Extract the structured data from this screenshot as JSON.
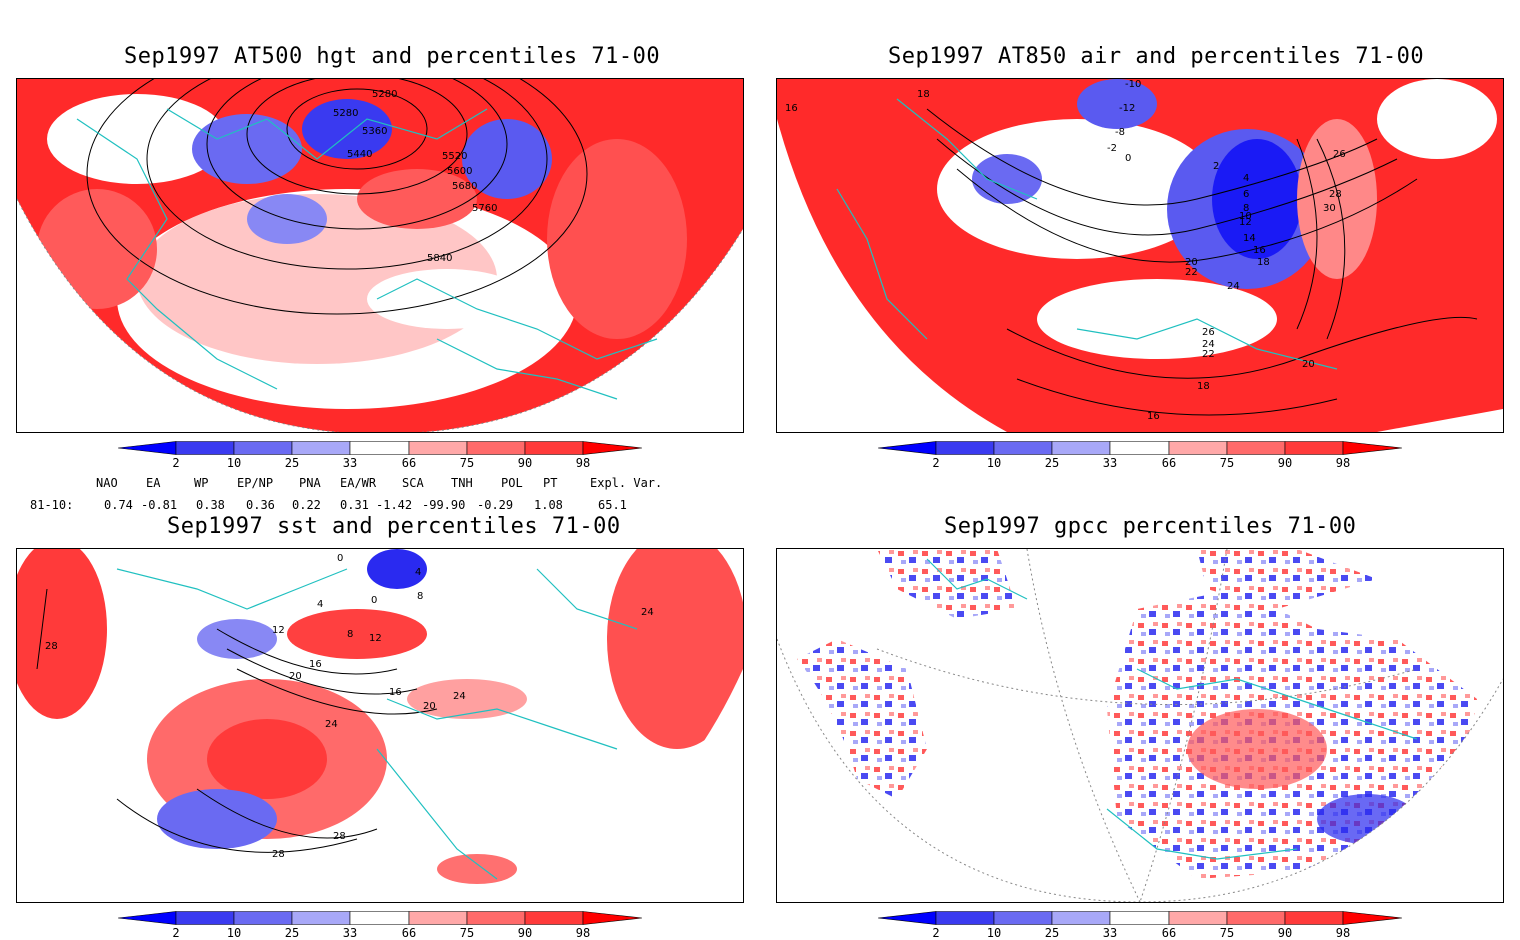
{
  "panels": [
    {
      "id": "hgt",
      "title": "Sep1997 AT500 hgt and percentiles 71-00",
      "contour_labels": [
        "5280",
        "5280",
        "5360",
        "5440",
        "5520",
        "5600",
        "5680",
        "5760",
        "5840"
      ]
    },
    {
      "id": "air",
      "title": "Sep1997 AT850 air and percentiles 71-00",
      "contour_labels": [
        "-10",
        "-12",
        "-8",
        "-2",
        "0",
        "2",
        "4",
        "6",
        "8",
        "10",
        "12",
        "14",
        "16",
        "18",
        "20",
        "22",
        "24",
        "26",
        "28",
        "30",
        "18",
        "16",
        "16",
        "18",
        "20",
        "22",
        "24",
        "26"
      ]
    },
    {
      "id": "sst",
      "title": "Sep1997 sst and percentiles 71-00",
      "contour_labels": [
        "0",
        "4",
        "8",
        "12",
        "16",
        "20",
        "24",
        "28",
        "28",
        "28",
        "24",
        "24",
        "20",
        "16",
        "12",
        "8",
        "4",
        "0"
      ]
    },
    {
      "id": "gpcc",
      "title": "Sep1997 gpcc percentiles 71-00",
      "contour_labels": []
    }
  ],
  "colorbar": {
    "labels": [
      "2",
      "10",
      "25",
      "33",
      "66",
      "75",
      "90",
      "98"
    ],
    "colors": [
      "#0000ff",
      "#3a3af0",
      "#6a6af2",
      "#a8a8f8",
      "#ffffff",
      "#ffa8a8",
      "#ff6a6a",
      "#ff3a3a",
      "#ff0000"
    ]
  },
  "indices": {
    "header": [
      "NAO",
      "EA",
      "WP",
      "EP/NP",
      "PNA",
      "EA/WR",
      "SCA",
      "TNH",
      "POL",
      "PT",
      "Expl. Var."
    ],
    "row_label": "81-10:",
    "values": [
      "0.74",
      "-0.81",
      "0.38",
      "0.36",
      "0.22",
      "0.31",
      "-1.42",
      "-99.90",
      "-0.29",
      "1.08",
      "65.1"
    ]
  }
}
